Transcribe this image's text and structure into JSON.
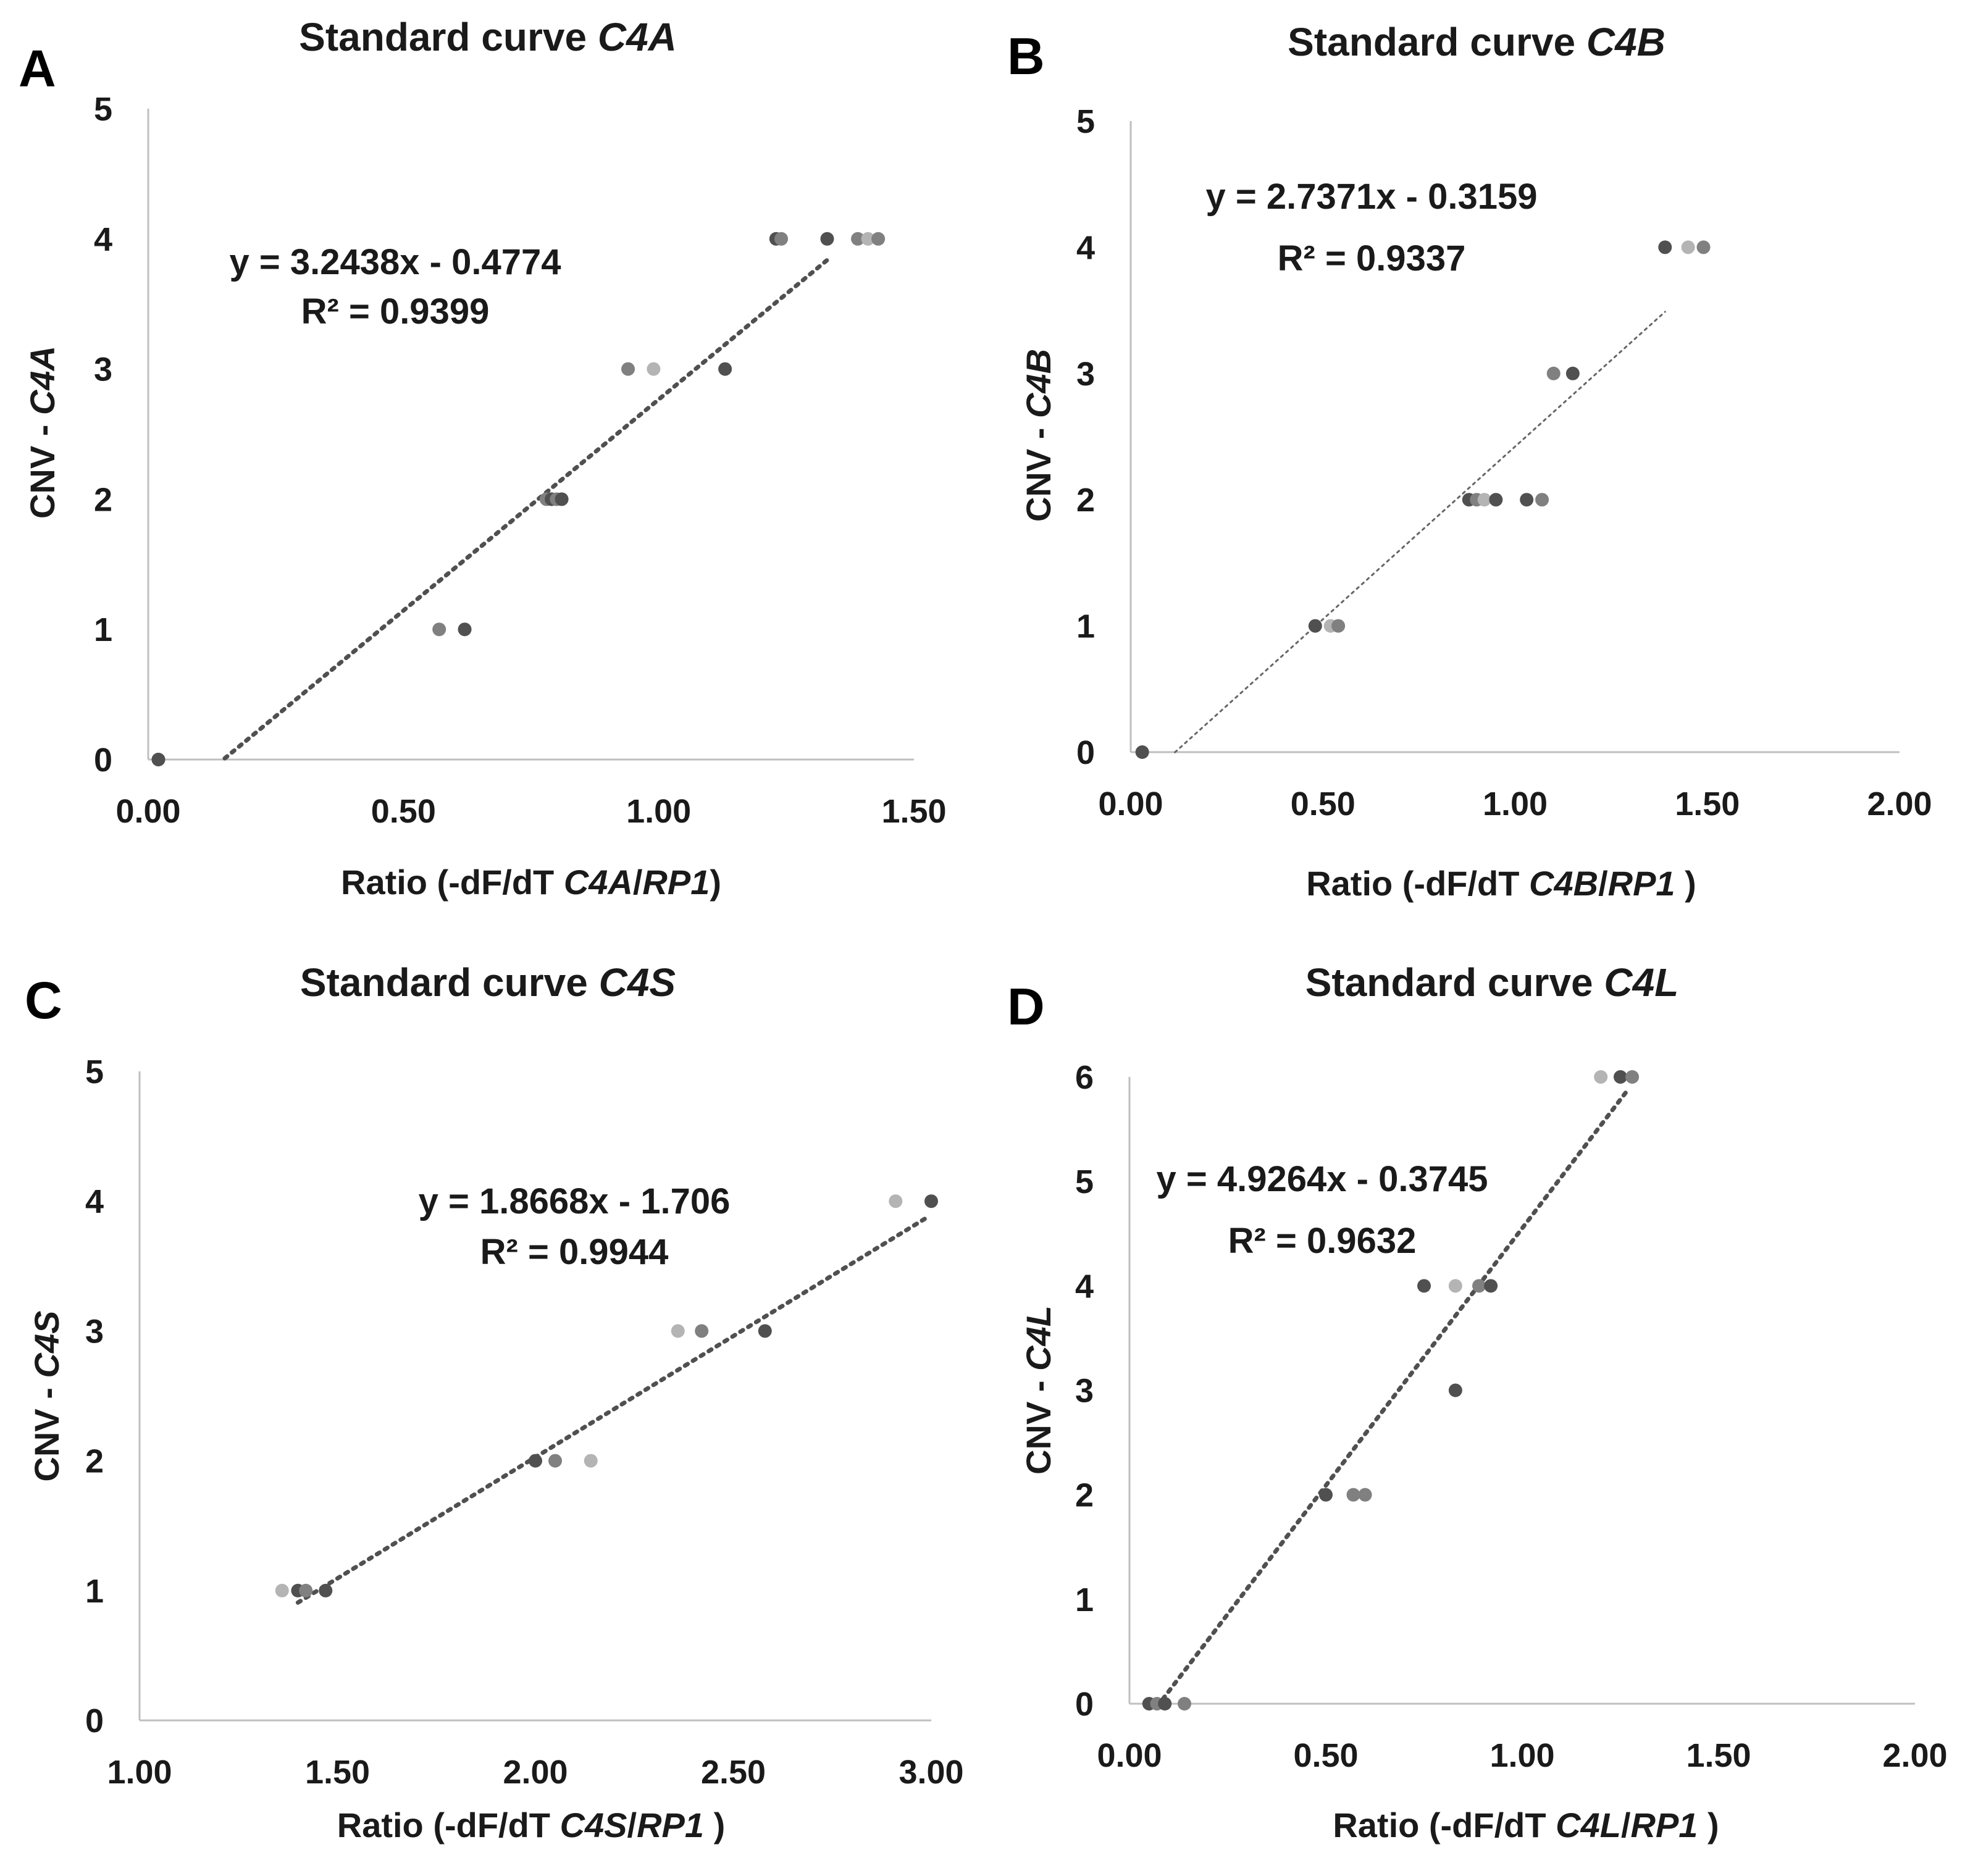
{
  "colors": {
    "dark": "#505050",
    "mid": "#808080",
    "light": "#b4b4b4",
    "axis": "#bfbfbf",
    "trend": "#505050"
  },
  "chart_data": [
    {
      "id": "A",
      "type": "scatter",
      "panel_letter": "A",
      "title_prefix": "Standard curve ",
      "gene": "C4A",
      "xlabel_prefix": "Ratio (-dF/dT ",
      "xlabel_gene": "C4A",
      "xlabel_slash": "/",
      "xlabel_ref": "RP1",
      "xlabel_suffix": ")",
      "ylabel_prefix": "CNV - ",
      "ylabel_gene": "C4A",
      "xlim": [
        0,
        1.5
      ],
      "ylim": [
        0,
        5
      ],
      "xticks": [
        0,
        0.5,
        1.0,
        1.5
      ],
      "xtick_labels": [
        "0.00",
        "0.50",
        "1.00",
        "1.50"
      ],
      "yticks": [
        0,
        1,
        2,
        3,
        4,
        5
      ],
      "ytick_labels": [
        "0",
        "1",
        "2",
        "3",
        "4",
        "5"
      ],
      "equation": "y = 3.2438x - 0.4774",
      "r2_label": "R² = 0.9399",
      "trendline": {
        "slope": 3.2438,
        "intercept": -0.4774,
        "x_range": [
          0.15,
          1.33
        ],
        "style": "dotted"
      },
      "points": [
        {
          "x": 0.02,
          "y": 0,
          "shade": "mid"
        },
        {
          "x": 0.02,
          "y": 0,
          "shade": "dark"
        },
        {
          "x": 0.57,
          "y": 1,
          "shade": "mid"
        },
        {
          "x": 0.62,
          "y": 1,
          "shade": "dark"
        },
        {
          "x": 0.78,
          "y": 2,
          "shade": "mid"
        },
        {
          "x": 0.79,
          "y": 2,
          "shade": "dark"
        },
        {
          "x": 0.8,
          "y": 2,
          "shade": "mid"
        },
        {
          "x": 0.81,
          "y": 2,
          "shade": "dark"
        },
        {
          "x": 0.94,
          "y": 3,
          "shade": "mid"
        },
        {
          "x": 0.99,
          "y": 3,
          "shade": "light"
        },
        {
          "x": 1.13,
          "y": 3,
          "shade": "dark"
        },
        {
          "x": 1.23,
          "y": 4,
          "shade": "dark"
        },
        {
          "x": 1.24,
          "y": 4,
          "shade": "mid"
        },
        {
          "x": 1.33,
          "y": 4,
          "shade": "dark"
        },
        {
          "x": 1.39,
          "y": 4,
          "shade": "mid"
        },
        {
          "x": 1.41,
          "y": 4,
          "shade": "light"
        },
        {
          "x": 1.43,
          "y": 4,
          "shade": "mid"
        }
      ]
    },
    {
      "id": "B",
      "type": "scatter",
      "panel_letter": "B",
      "title_prefix": "Standard curve ",
      "gene": "C4B",
      "xlabel_prefix": "Ratio (-dF/dT ",
      "xlabel_gene": "C4B",
      "xlabel_slash": "/",
      "xlabel_ref": "RP1",
      "xlabel_suffix": " )",
      "ylabel_prefix": "CNV - ",
      "ylabel_gene": "C4B",
      "xlim": [
        0,
        2.0
      ],
      "ylim": [
        0,
        5
      ],
      "xticks": [
        0,
        0.5,
        1.0,
        1.5,
        2.0
      ],
      "xtick_labels": [
        "0.00",
        "0.50",
        "1.00",
        "1.50",
        "2.00"
      ],
      "yticks": [
        0,
        1,
        2,
        3,
        4,
        5
      ],
      "ytick_labels": [
        "0",
        "1",
        "2",
        "3",
        "4",
        "5"
      ],
      "equation": "y = 2.7371x - 0.3159",
      "r2_label": "R² = 0.9337",
      "trendline": {
        "slope": 2.7371,
        "intercept": -0.3159,
        "x_range": [
          0.115,
          1.39
        ],
        "style": "thin"
      },
      "points": [
        {
          "x": 0.03,
          "y": 0,
          "shade": "dark"
        },
        {
          "x": 0.48,
          "y": 1,
          "shade": "dark"
        },
        {
          "x": 0.52,
          "y": 1,
          "shade": "light"
        },
        {
          "x": 0.54,
          "y": 1,
          "shade": "mid"
        },
        {
          "x": 0.88,
          "y": 2,
          "shade": "dark"
        },
        {
          "x": 0.9,
          "y": 2,
          "shade": "mid"
        },
        {
          "x": 0.92,
          "y": 2,
          "shade": "light"
        },
        {
          "x": 0.95,
          "y": 2,
          "shade": "dark"
        },
        {
          "x": 1.03,
          "y": 2,
          "shade": "dark"
        },
        {
          "x": 1.07,
          "y": 2,
          "shade": "mid"
        },
        {
          "x": 1.1,
          "y": 3,
          "shade": "mid"
        },
        {
          "x": 1.15,
          "y": 3,
          "shade": "dark"
        },
        {
          "x": 1.39,
          "y": 4,
          "shade": "dark"
        },
        {
          "x": 1.45,
          "y": 4,
          "shade": "light"
        },
        {
          "x": 1.49,
          "y": 4,
          "shade": "mid"
        }
      ]
    },
    {
      "id": "C",
      "type": "scatter",
      "panel_letter": "C",
      "title_prefix": "Standard curve ",
      "gene": "C4S",
      "xlabel_prefix": "Ratio (-dF/dT ",
      "xlabel_gene": "C4S",
      "xlabel_slash": "/",
      "xlabel_ref": "RP1",
      "xlabel_suffix": " )",
      "ylabel_prefix": "CNV - ",
      "ylabel_gene": "C4S",
      "xlim": [
        1.0,
        3.0
      ],
      "ylim": [
        0,
        5
      ],
      "xticks": [
        1.0,
        1.5,
        2.0,
        2.5,
        3.0
      ],
      "xtick_labels": [
        "1.00",
        "1.50",
        "2.00",
        "2.50",
        "3.00"
      ],
      "yticks": [
        0,
        1,
        2,
        3,
        4,
        5
      ],
      "ytick_labels": [
        "0",
        "1",
        "2",
        "3",
        "4",
        "5"
      ],
      "equation": "y = 1.8668x - 1.706",
      "r2_label": "R² = 0.9944",
      "trendline": {
        "slope": 1.8668,
        "intercept": -1.706,
        "x_range": [
          1.4,
          2.99
        ],
        "style": "dotted"
      },
      "points": [
        {
          "x": 1.36,
          "y": 1,
          "shade": "light"
        },
        {
          "x": 1.4,
          "y": 1,
          "shade": "dark"
        },
        {
          "x": 1.42,
          "y": 1,
          "shade": "mid"
        },
        {
          "x": 1.47,
          "y": 1,
          "shade": "dark"
        },
        {
          "x": 2.0,
          "y": 2,
          "shade": "dark"
        },
        {
          "x": 2.05,
          "y": 2,
          "shade": "mid"
        },
        {
          "x": 2.14,
          "y": 2,
          "shade": "light"
        },
        {
          "x": 2.36,
          "y": 3,
          "shade": "light"
        },
        {
          "x": 2.42,
          "y": 3,
          "shade": "mid"
        },
        {
          "x": 2.58,
          "y": 3,
          "shade": "dark"
        },
        {
          "x": 2.91,
          "y": 4,
          "shade": "light"
        },
        {
          "x": 3.0,
          "y": 4,
          "shade": "dark"
        }
      ]
    },
    {
      "id": "D",
      "type": "scatter",
      "panel_letter": "D",
      "title_prefix": "Standard curve ",
      "gene": "C4L",
      "xlabel_prefix": "Ratio (-dF/dT ",
      "xlabel_gene": "C4L",
      "xlabel_slash": "/",
      "xlabel_ref": "RP1",
      "xlabel_suffix": " )",
      "ylabel_prefix": "CNV - ",
      "ylabel_gene": "C4L",
      "xlim": [
        0,
        2.0
      ],
      "ylim": [
        0,
        6
      ],
      "xticks": [
        0,
        0.5,
        1.0,
        1.5,
        2.0
      ],
      "xtick_labels": [
        "0.00",
        "0.50",
        "1.00",
        "1.50",
        "2.00"
      ],
      "yticks": [
        0,
        1,
        2,
        3,
        4,
        5,
        6
      ],
      "ytick_labels": [
        "0",
        "1",
        "2",
        "3",
        "4",
        "5",
        "6"
      ],
      "equation": "y = 4.9264x - 0.3745",
      "r2_label": "R² = 0.9632",
      "trendline": {
        "slope": 4.9264,
        "intercept": -0.3745,
        "x_range": [
          0.085,
          1.27
        ],
        "style": "dotted"
      },
      "points": [
        {
          "x": 0.05,
          "y": 0,
          "shade": "dark"
        },
        {
          "x": 0.07,
          "y": 0,
          "shade": "mid"
        },
        {
          "x": 0.09,
          "y": 0,
          "shade": "dark"
        },
        {
          "x": 0.14,
          "y": 0,
          "shade": "mid"
        },
        {
          "x": 0.5,
          "y": 2,
          "shade": "dark"
        },
        {
          "x": 0.57,
          "y": 2,
          "shade": "mid"
        },
        {
          "x": 0.6,
          "y": 2,
          "shade": "mid"
        },
        {
          "x": 0.75,
          "y": 4,
          "shade": "dark"
        },
        {
          "x": 0.83,
          "y": 4,
          "shade": "light"
        },
        {
          "x": 0.89,
          "y": 4,
          "shade": "mid"
        },
        {
          "x": 0.92,
          "y": 4,
          "shade": "dark"
        },
        {
          "x": 0.83,
          "y": 3,
          "shade": "dark"
        },
        {
          "x": 1.2,
          "y": 6,
          "shade": "light"
        },
        {
          "x": 1.25,
          "y": 6,
          "shade": "dark"
        },
        {
          "x": 1.28,
          "y": 6,
          "shade": "mid"
        }
      ]
    }
  ]
}
